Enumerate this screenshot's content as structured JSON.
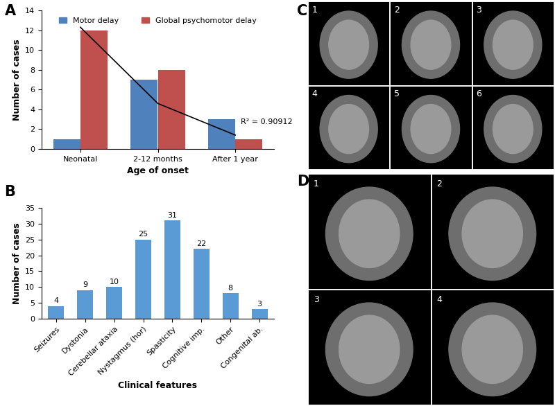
{
  "chart_data": [
    {
      "panel": "A",
      "type": "bar",
      "categories": [
        "Neonatal",
        "2-12 months",
        "After 1 year"
      ],
      "series": [
        {
          "name": "Motor delay",
          "color": "#4f81bd",
          "values": [
            1,
            7,
            3
          ]
        },
        {
          "name": "Global psychomotor delay",
          "color": "#c0504d",
          "values": [
            12,
            8,
            1
          ]
        },
        {
          "type": "line",
          "color": "#000000",
          "values": [
            12.3,
            4.6,
            1.4
          ]
        }
      ],
      "annotations": [
        "R² = 0.90912"
      ],
      "x_label": "Age of onset",
      "y_label": "Number of cases",
      "ylim": [
        0,
        14
      ],
      "yticks": [
        0,
        2,
        4,
        6,
        8,
        10,
        12,
        14
      ],
      "grid": false,
      "legend": "upper center"
    },
    {
      "panel": "B",
      "type": "bar",
      "categories": [
        "Seizures",
        "Dystonia",
        "Cerebellar ataxia",
        "Nystagmus (hor)",
        "Spasticity",
        "Cognitive imp.",
        "Other",
        "Congenital ab."
      ],
      "values": [
        4,
        9,
        10,
        25,
        31,
        22,
        8,
        3
      ],
      "color": "#5b9bd5",
      "data_labels": true,
      "x_label": "Clinical features",
      "y_label": "Number of cases",
      "ylim": [
        0,
        35
      ],
      "yticks": [
        0,
        5,
        10,
        15,
        20,
        25,
        30,
        35
      ],
      "grid": false
    }
  ],
  "images": [
    {
      "panel": "C",
      "numbers": [
        "1",
        "2",
        "3",
        "4",
        "5",
        "6"
      ]
    },
    {
      "panel": "D",
      "numbers": [
        "1",
        "2",
        "3",
        "4"
      ]
    }
  ]
}
